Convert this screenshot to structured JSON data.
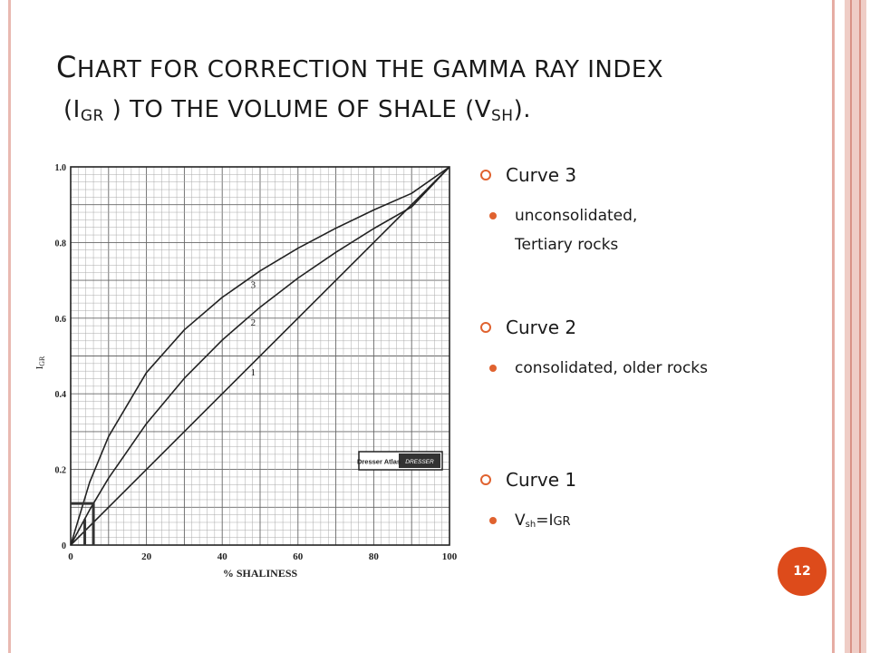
{
  "slide": {
    "title_line1_cap": "C",
    "title_line1_rest": "HART FOR CORRECTION THE GAMMA RAY INDEX",
    "title_line2_a": "(I",
    "title_line2_sub1": "GR",
    "title_line2_b": " ) TO THE VOLUME OF SHALE (V",
    "title_line2_sub2": "SH",
    "title_line2_c": ").",
    "page_number": "12"
  },
  "bullets": [
    {
      "label": "Curve 3",
      "detail": "unconsolidated, Tertiary rocks"
    },
    {
      "label": "Curve 2",
      "detail": "consolidated, older rocks"
    },
    {
      "label": "Curve 1",
      "detail_v": "V",
      "detail_sub": "sh",
      "detail_eq": "=I",
      "detail_gr": "GR"
    }
  ],
  "colors": {
    "accent": "#e0622f",
    "page_badge": "#dd4b1b",
    "frame": "#e6ada4"
  },
  "chart_data": {
    "type": "line",
    "xlabel": "% SHALINESS",
    "ylabel": "I",
    "ylabel_sub": "GR",
    "xlim": [
      0,
      100
    ],
    "ylim": [
      0,
      1.0
    ],
    "xticks": [
      "0",
      "20",
      "40",
      "60",
      "80",
      "100"
    ],
    "yticks": [
      "0",
      "0.2",
      "0.4",
      "0.6",
      "0.8",
      "1.0"
    ],
    "grid": true,
    "logo_text_1": "Dresser Atlas",
    "logo_text_2": "DRESSER",
    "series": [
      {
        "name": "1",
        "x": [
          0,
          100
        ],
        "y": [
          0,
          1.0
        ]
      },
      {
        "name": "2",
        "x": [
          0,
          5,
          10,
          20,
          30,
          40,
          50,
          60,
          70,
          80,
          90,
          100
        ],
        "y": [
          0,
          0.093,
          0.177,
          0.321,
          0.441,
          0.542,
          0.629,
          0.706,
          0.774,
          0.837,
          0.894,
          1.0
        ]
      },
      {
        "name": "3",
        "x": [
          0,
          5,
          10,
          20,
          30,
          40,
          50,
          60,
          70,
          80,
          90,
          100
        ],
        "y": [
          0,
          0.166,
          0.287,
          0.456,
          0.569,
          0.655,
          0.725,
          0.785,
          0.838,
          0.886,
          0.93,
          1.0
        ]
      }
    ],
    "annotation": {
      "x": 6,
      "y": 0.11
    }
  }
}
